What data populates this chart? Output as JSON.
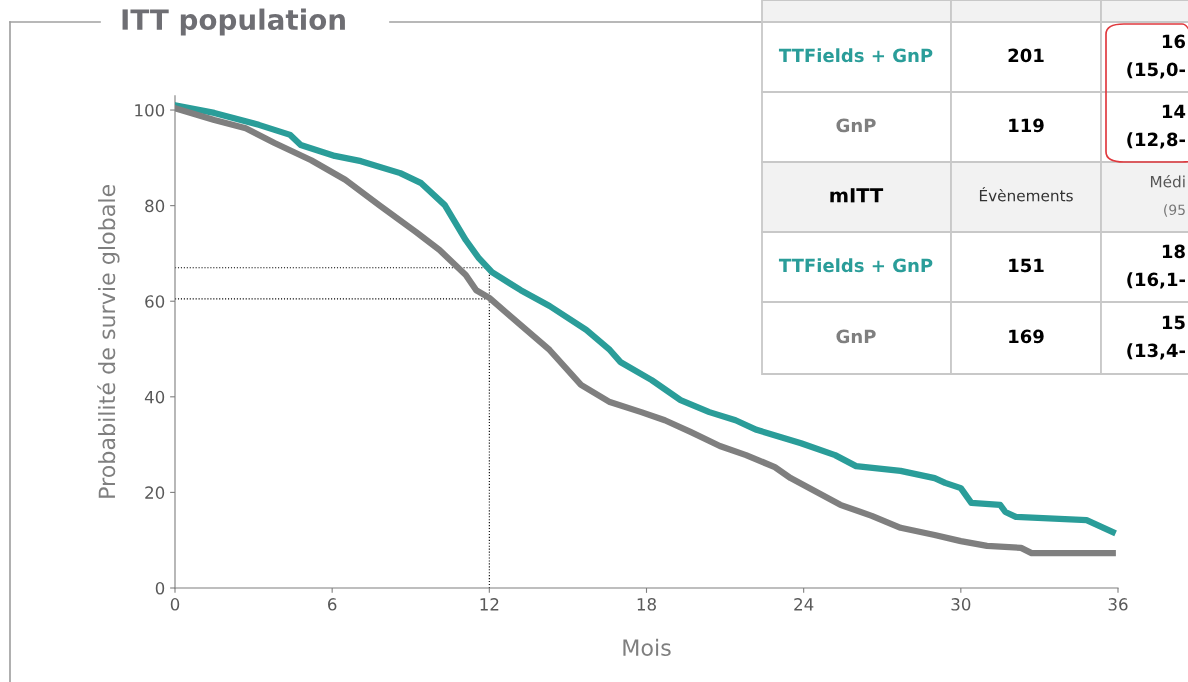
{
  "chart_data": {
    "type": "line",
    "title": "ITT population",
    "xlabel": "Mois",
    "ylabel": "Probabilité de survie globale",
    "x": [
      0,
      1.5,
      3.2,
      4.4,
      4.8,
      6.1,
      7.1,
      8.6,
      9.4,
      10.3,
      11.1,
      11.6,
      12.1,
      13.2,
      14.3,
      15.7,
      16.6,
      17.0,
      18.2,
      19.3,
      20.4,
      21.4,
      22.2,
      23.9,
      25.2,
      26.0,
      27.7,
      29.0,
      29.4,
      30.0,
      30.4,
      31.5,
      31.7,
      32.1,
      34.8,
      35.8
    ],
    "series": [
      {
        "color": "#2a9d99",
        "values": [
          101,
          99.4,
          96.9,
          94.8,
          92.7,
          90.4,
          89.3,
          86.8,
          84.7,
          80.1,
          72.8,
          69.0,
          66.1,
          62.3,
          59.0,
          54.0,
          49.8,
          47.3,
          43.5,
          39.3,
          36.8,
          35.1,
          33.1,
          30.3,
          27.8,
          25.5,
          24.5,
          23.0,
          22.0,
          20.9,
          17.8,
          17.4,
          15.9,
          14.9,
          14.2,
          11.7
        ]
      },
      {
        "color": "#7f7f7f",
        "x": [
          0,
          1.5,
          2.7,
          3.8,
          5.2,
          6.5,
          7.8,
          9.2,
          10.1,
          11.1,
          11.5,
          12.0,
          13.2,
          14.3,
          15.5,
          16.6,
          17.8,
          18.7,
          19.7,
          20.8,
          21.8,
          22.9,
          23.5,
          25.4,
          26.6,
          27.7,
          29.0,
          30.0,
          31.0,
          32.3,
          32.7,
          35.8
        ],
        "values": [
          100.4,
          97.9,
          96.2,
          93.1,
          89.5,
          85.4,
          80.1,
          74.5,
          70.7,
          65.5,
          62.3,
          60.7,
          55.0,
          49.8,
          42.5,
          38.9,
          36.8,
          35.1,
          32.6,
          29.7,
          27.8,
          25.3,
          23.0,
          17.4,
          15.1,
          12.6,
          11.1,
          9.8,
          8.8,
          8.4,
          7.3,
          7.3
        ]
      }
    ],
    "xlim": [
      0,
      36
    ],
    "xticks": [
      0,
      6,
      12,
      18,
      24,
      30,
      36
    ],
    "ylim": [
      0,
      103
    ],
    "yticks": [
      0,
      20,
      40,
      60,
      80,
      100
    ],
    "grid": false,
    "marker": "none",
    "line_style": "solid",
    "ref_lines": [
      {
        "axis": "y",
        "value": 67,
        "color": "#000000",
        "line_style": "dotted"
      },
      {
        "axis": "y",
        "value": 60.5,
        "color": "#000000",
        "line_style": "dotted"
      },
      {
        "axis": "x",
        "value": 12,
        "color": "#000000",
        "line_style": "dotted"
      }
    ],
    "annotations": [
      "TTFields + GnP",
      "201",
      "16",
      "(15,0-",
      "GnP",
      "119",
      "14",
      "(12,8-",
      "mITT",
      "Évènements",
      "Médi",
      "(95",
      "TTFields + GnP",
      "151",
      "18",
      "(16,1-",
      "GnP",
      "169",
      "15",
      "(13,4-"
    ]
  }
}
